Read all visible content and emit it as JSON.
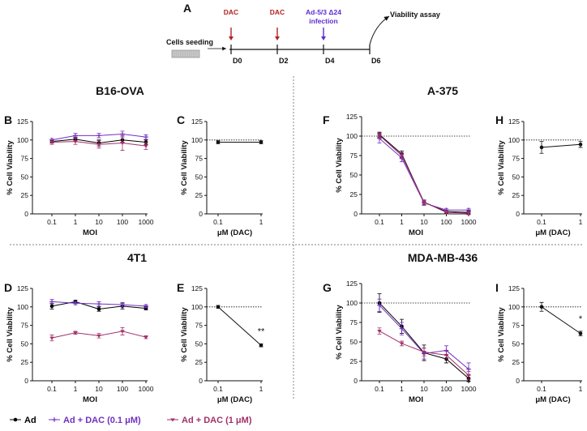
{
  "timeline": {
    "panel_label": "A",
    "seeding_label": "Cells seeding",
    "assay_label": "Viability assay",
    "days": [
      "D0",
      "D2",
      "D4",
      "D6"
    ],
    "events": [
      {
        "day": "D0",
        "label": "DAC",
        "color": "#b22222"
      },
      {
        "day": "D2",
        "label": "DAC",
        "color": "#b22222"
      },
      {
        "day": "D4",
        "label": "Ad-5/3 Δ24 infection",
        "color": "#5b2bd6"
      }
    ]
  },
  "section_titles": {
    "b16": "B16-OVA",
    "a375": "A-375",
    "t41": "4T1",
    "mda": "MDA-MB-436"
  },
  "legend": {
    "items": [
      {
        "label": "Ad",
        "color": "#000000"
      },
      {
        "label": "Ad + DAC (0.1 μM)",
        "color": "#7030c0"
      },
      {
        "label": "Ad + DAC (1 μM)",
        "color": "#a0306a"
      }
    ]
  },
  "colors": {
    "ad": "#000000",
    "ad_dac01": "#7030c0",
    "ad_dac1": "#a0306a"
  },
  "chart_data": [
    {
      "panel": "B",
      "type": "line",
      "title": "B16-OVA",
      "xlabel": "MOI",
      "ylabel": "% Cell Viability",
      "x": [
        0.1,
        1,
        10,
        100,
        1000
      ],
      "xscale": "log",
      "ylim": [
        0,
        125
      ],
      "yticks": [
        0,
        25,
        50,
        75,
        100,
        125
      ],
      "ref_line": null,
      "series": [
        {
          "name": "Ad",
          "values": [
            98,
            101,
            96,
            100,
            97
          ],
          "err": [
            2,
            3,
            4,
            4,
            3
          ]
        },
        {
          "name": "Ad + DAC (0.1 μM)",
          "values": [
            100,
            106,
            106,
            108,
            104
          ],
          "err": [
            2,
            3,
            3,
            4,
            3
          ]
        },
        {
          "name": "Ad + DAC (1 μM)",
          "values": [
            97,
            98,
            94,
            96,
            92
          ],
          "err": [
            3,
            4,
            5,
            10,
            5
          ]
        }
      ]
    },
    {
      "panel": "C",
      "type": "line",
      "xlabel": "μM (DAC)",
      "ylabel": "% Cell Viability",
      "x": [
        0.1,
        1
      ],
      "xscale": "log",
      "ylim": [
        0,
        125
      ],
      "yticks": [
        0,
        25,
        50,
        75,
        100,
        125
      ],
      "ref_line": 100,
      "series": [
        {
          "name": "DAC",
          "values": [
            97,
            97
          ],
          "err": [
            2,
            2
          ]
        }
      ]
    },
    {
      "panel": "F",
      "type": "line",
      "title": "A-375",
      "xlabel": "MOI",
      "ylabel": "% Cell Viability",
      "x": [
        0.1,
        1,
        10,
        100,
        1000
      ],
      "xscale": "log",
      "ylim": [
        0,
        125
      ],
      "yticks": [
        0,
        25,
        50,
        75,
        100,
        125
      ],
      "ref_line": 100,
      "series": [
        {
          "name": "Ad",
          "values": [
            102,
            77,
            15,
            3,
            2
          ],
          "err": [
            3,
            4,
            3,
            2,
            2
          ]
        },
        {
          "name": "Ad + DAC (0.1 μM)",
          "values": [
            97,
            72,
            14,
            5,
            5
          ],
          "err": [
            6,
            5,
            3,
            2,
            2
          ]
        },
        {
          "name": "Ad + DAC (1 μM)",
          "values": [
            101,
            75,
            15,
            2,
            1
          ],
          "err": [
            3,
            4,
            3,
            2,
            2
          ]
        }
      ]
    },
    {
      "panel": "H",
      "type": "line",
      "xlabel": "μM (DAC)",
      "ylabel": "% Cell Viability",
      "x": [
        0.1,
        1
      ],
      "xscale": "log",
      "ylim": [
        0,
        125
      ],
      "yticks": [
        0,
        25,
        50,
        75,
        100,
        125
      ],
      "ref_line": 100,
      "series": [
        {
          "name": "DAC",
          "values": [
            90,
            94
          ],
          "err": [
            8,
            4
          ]
        }
      ]
    },
    {
      "panel": "D",
      "type": "line",
      "title": "4T1",
      "xlabel": "MOI",
      "ylabel": "% Cell Viability",
      "x": [
        0.1,
        1,
        10,
        100,
        1000
      ],
      "xscale": "log",
      "ylim": [
        0,
        125
      ],
      "yticks": [
        0,
        25,
        50,
        75,
        100,
        125
      ],
      "ref_line": null,
      "series": [
        {
          "name": "Ad",
          "values": [
            101,
            107,
            97,
            101,
            98
          ],
          "err": [
            4,
            2,
            3,
            4,
            2
          ]
        },
        {
          "name": "Ad + DAC (0.1 μM)",
          "values": [
            107,
            105,
            104,
            103,
            101
          ],
          "err": [
            3,
            2,
            3,
            3,
            2
          ]
        },
        {
          "name": "Ad + DAC (1 μM)",
          "values": [
            58,
            65,
            61,
            67,
            59
          ],
          "err": [
            4,
            2,
            3,
            5,
            2
          ]
        }
      ]
    },
    {
      "panel": "E",
      "type": "line",
      "xlabel": "μM (DAC)",
      "ylabel": "% Cell Viability",
      "x": [
        0.1,
        1
      ],
      "xscale": "log",
      "ylim": [
        0,
        125
      ],
      "yticks": [
        0,
        25,
        50,
        75,
        100,
        125
      ],
      "ref_line": 100,
      "significance": "**",
      "series": [
        {
          "name": "DAC",
          "values": [
            100,
            48
          ],
          "err": [
            2,
            2
          ]
        }
      ]
    },
    {
      "panel": "G",
      "type": "line",
      "title": "MDA-MB-436",
      "xlabel": "MOI",
      "ylabel": "% Cell Viability",
      "x": [
        0.1,
        1,
        10,
        100,
        1000
      ],
      "xscale": "log",
      "ylim": [
        0,
        125
      ],
      "yticks": [
        0,
        25,
        50,
        75,
        100,
        125
      ],
      "ref_line": 100,
      "series": [
        {
          "name": "Ad",
          "values": [
            100,
            70,
            36,
            28,
            3
          ],
          "err": [
            12,
            9,
            10,
            5,
            4
          ]
        },
        {
          "name": "Ad + DAC (0.1 μM)",
          "values": [
            97,
            67,
            35,
            39,
            15
          ],
          "err": [
            8,
            8,
            7,
            6,
            8
          ]
        },
        {
          "name": "Ad + DAC (1 μM)",
          "values": [
            64,
            48,
            37,
            33,
            7
          ],
          "err": [
            4,
            3,
            5,
            5,
            5
          ]
        }
      ]
    },
    {
      "panel": "I",
      "type": "line",
      "xlabel": "μM (DAC)",
      "ylabel": "% Cell Viability",
      "x": [
        0.1,
        1
      ],
      "xscale": "log",
      "ylim": [
        0,
        125
      ],
      "yticks": [
        0,
        25,
        50,
        75,
        100,
        125
      ],
      "ref_line": 100,
      "significance": "*",
      "series": [
        {
          "name": "DAC",
          "values": [
            100,
            64
          ],
          "err": [
            6,
            3
          ]
        }
      ]
    }
  ]
}
